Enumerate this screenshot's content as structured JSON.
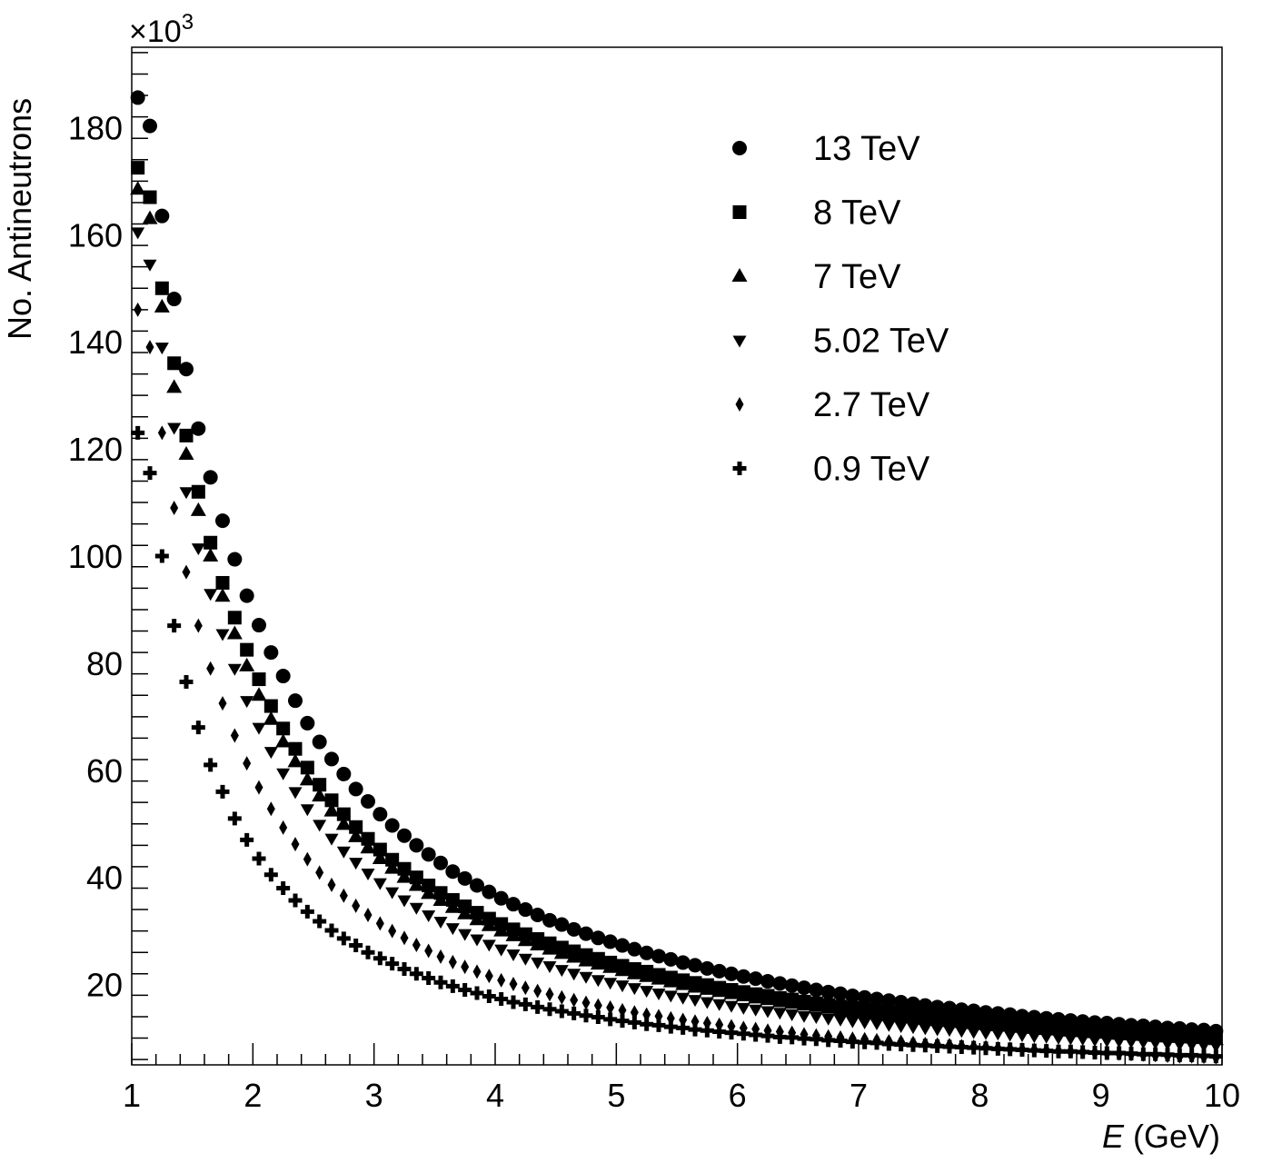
{
  "chart_data": {
    "type": "scatter",
    "title": "",
    "xlabel": "E",
    "xlabel_unit": "(GeV)",
    "ylabel": "No. Antineutrons",
    "y_multiplier": "×10",
    "y_multiplier_exponent": "3",
    "xlim": [
      1,
      10
    ],
    "ylim": [
      5,
      195
    ],
    "x_ticks": [
      1,
      2,
      3,
      4,
      5,
      6,
      7,
      8,
      9,
      10
    ],
    "x_tick_labels": [
      "1",
      "2",
      "3",
      "4",
      "5",
      "6",
      "7",
      "8",
      "9",
      "10"
    ],
    "y_ticks": [
      20,
      40,
      60,
      80,
      100,
      120,
      140,
      160,
      180
    ],
    "y_tick_labels": [
      "20",
      "40",
      "60",
      "80",
      "100",
      "120",
      "140",
      "160",
      "180"
    ],
    "grid": false,
    "legend_position": "top-right",
    "x": [
      1.05,
      1.15,
      1.25,
      1.35,
      1.45,
      1.55,
      1.65,
      1.75,
      1.85,
      1.95,
      2.05,
      2.15,
      2.25,
      2.35,
      2.45,
      2.55,
      2.65,
      2.75,
      2.85,
      2.95,
      3.05,
      3.15,
      3.25,
      3.35,
      3.45,
      3.55,
      3.65,
      3.75,
      3.85,
      3.95,
      4.05,
      4.15,
      4.25,
      4.35,
      4.45,
      4.55,
      4.65,
      4.75,
      4.85,
      4.95,
      5.05,
      5.15,
      5.25,
      5.35,
      5.45,
      5.55,
      5.65,
      5.75,
      5.85,
      5.95,
      6.05,
      6.15,
      6.25,
      6.35,
      6.45,
      6.55,
      6.65,
      6.75,
      6.85,
      6.95,
      7.05,
      7.15,
      7.25,
      7.35,
      7.45,
      7.55,
      7.65,
      7.75,
      7.85,
      7.95,
      8.05,
      8.15,
      8.25,
      8.35,
      8.45,
      8.55,
      8.65,
      8.75,
      8.85,
      8.95,
      9.05,
      9.15,
      9.25,
      9.35,
      9.45,
      9.55,
      9.65,
      9.75,
      9.85,
      9.95
    ],
    "series": [
      {
        "name": "13 TeV",
        "marker": "circle",
        "values": [
          185.6,
          180.3,
          163.5,
          148.0,
          134.9,
          123.8,
          114.7,
          106.6,
          99.4,
          92.6,
          87.1,
          82.0,
          77.6,
          73.0,
          68.8,
          65.3,
          62.1,
          59.3,
          56.5,
          54.2,
          51.8,
          49.7,
          47.8,
          46.0,
          44.3,
          42.7,
          41.1,
          39.8,
          38.5,
          37.3,
          36.1,
          35.0,
          34.0,
          33.0,
          32.0,
          31.2,
          30.3,
          29.5,
          28.7,
          28.0,
          27.3,
          26.6,
          25.9,
          25.3,
          24.7,
          24.1,
          23.6,
          23.0,
          22.5,
          22.0,
          21.5,
          21.1,
          20.6,
          20.2,
          19.8,
          19.4,
          19.0,
          18.6,
          18.3,
          17.9,
          17.6,
          17.3,
          17.0,
          16.7,
          16.4,
          16.1,
          15.8,
          15.6,
          15.3,
          15.1,
          14.8,
          14.6,
          14.4,
          14.1,
          13.9,
          13.7,
          13.5,
          13.3,
          13.1,
          12.9,
          12.8,
          12.6,
          12.4,
          12.3,
          12.1,
          11.9,
          11.8,
          11.6,
          11.5,
          11.3
        ]
      },
      {
        "name": "8 TeV",
        "marker": "square",
        "values": [
          172.5,
          167.0,
          150.0,
          136.0,
          122.5,
          112.0,
          102.5,
          95.0,
          88.5,
          82.5,
          77.0,
          72.0,
          67.8,
          64.0,
          60.5,
          57.3,
          54.4,
          51.8,
          49.4,
          47.2,
          45.2,
          43.3,
          41.6,
          40.0,
          38.5,
          37.1,
          35.8,
          34.6,
          33.4,
          32.3,
          31.3,
          30.3,
          29.4,
          28.5,
          27.7,
          26.9,
          26.2,
          25.5,
          24.8,
          24.1,
          23.5,
          22.9,
          22.4,
          21.8,
          21.3,
          20.8,
          20.3,
          19.9,
          19.4,
          19.0,
          18.6,
          18.2,
          17.9,
          17.5,
          17.2,
          16.8,
          16.5,
          16.2,
          15.9,
          15.6,
          15.4,
          15.1,
          14.8,
          14.6,
          14.4,
          14.1,
          13.9,
          13.7,
          13.5,
          13.3,
          13.1,
          12.9,
          12.7,
          12.5,
          12.3,
          12.2,
          12.0,
          11.8,
          11.7,
          11.5,
          11.4,
          11.2,
          11.1,
          11.0,
          10.8,
          10.7,
          10.6,
          10.4,
          10.3,
          10.2
        ]
      },
      {
        "name": "7 TeV",
        "marker": "triangle-up",
        "values": [
          168.5,
          163.0,
          146.5,
          131.5,
          119.0,
          108.5,
          100.0,
          92.5,
          85.5,
          79.5,
          74.0,
          69.5,
          65.3,
          61.6,
          58.2,
          55.2,
          52.4,
          49.9,
          47.6,
          45.5,
          43.5,
          41.7,
          40.0,
          38.5,
          37.0,
          35.7,
          34.4,
          33.2,
          32.1,
          31.0,
          30.0,
          29.1,
          28.2,
          27.4,
          26.6,
          25.8,
          25.1,
          24.4,
          23.8,
          23.2,
          22.6,
          22.0,
          21.5,
          21.0,
          20.5,
          20.0,
          19.5,
          19.1,
          18.7,
          18.3,
          17.9,
          17.5,
          17.2,
          16.8,
          16.5,
          16.2,
          15.9,
          15.6,
          15.3,
          15.0,
          14.7,
          14.5,
          14.2,
          14.0,
          13.8,
          13.5,
          13.3,
          13.1,
          12.9,
          12.7,
          12.5,
          12.3,
          12.2,
          12.0,
          11.8,
          11.6,
          11.5,
          11.3,
          11.2,
          11.0,
          10.9,
          10.7,
          10.6,
          10.5,
          10.3,
          10.2,
          10.1,
          10.0,
          9.9,
          9.7
        ]
      },
      {
        "name": "5.02 TeV",
        "marker": "triangle-down",
        "values": [
          160.5,
          154.5,
          139.0,
          124.0,
          112.0,
          101.5,
          93.0,
          85.5,
          79.0,
          73.0,
          68.0,
          63.5,
          59.5,
          56.0,
          52.8,
          49.9,
          47.3,
          44.9,
          42.8,
          40.8,
          39.0,
          37.3,
          35.8,
          34.4,
          33.0,
          31.8,
          30.6,
          29.5,
          28.5,
          27.5,
          26.6,
          25.7,
          24.9,
          24.2,
          23.5,
          22.8,
          22.1,
          21.5,
          20.9,
          20.4,
          19.9,
          19.4,
          18.9,
          18.4,
          18.0,
          17.6,
          17.2,
          16.8,
          16.4,
          16.1,
          15.7,
          15.4,
          15.1,
          14.8,
          14.5,
          14.2,
          14.0,
          13.7,
          13.5,
          13.2,
          13.0,
          12.8,
          12.5,
          12.3,
          12.1,
          11.9,
          11.7,
          11.6,
          11.4,
          11.2,
          11.0,
          10.9,
          10.7,
          10.6,
          10.4,
          10.3,
          10.1,
          10.0,
          9.9,
          9.7,
          9.6,
          9.5,
          9.4,
          9.3,
          9.2,
          9.0,
          8.9,
          8.8,
          8.7,
          8.6
        ]
      },
      {
        "name": "2.7 TeV",
        "marker": "diamond",
        "values": [
          146.0,
          139.0,
          123.0,
          109.0,
          97.0,
          87.0,
          79.0,
          72.5,
          66.5,
          61.3,
          56.8,
          52.8,
          49.3,
          46.2,
          43.4,
          40.9,
          38.6,
          36.6,
          34.7,
          33.0,
          31.4,
          30.0,
          28.7,
          27.4,
          26.3,
          25.2,
          24.2,
          23.3,
          22.4,
          21.6,
          20.8,
          20.1,
          19.4,
          18.8,
          18.2,
          17.6,
          17.1,
          16.6,
          16.1,
          15.7,
          15.2,
          14.8,
          14.4,
          14.1,
          13.7,
          13.4,
          13.1,
          12.8,
          12.5,
          12.2,
          11.9,
          11.7,
          11.4,
          11.2,
          11.0,
          10.7,
          10.5,
          10.3,
          10.1,
          9.9,
          9.8,
          9.6,
          9.4,
          9.3,
          9.1,
          8.9,
          8.8,
          8.7,
          8.5,
          8.4,
          8.3,
          8.1,
          8.0,
          7.9,
          7.8,
          7.7,
          7.6,
          7.5,
          7.4,
          7.3,
          7.2,
          7.1,
          7.0,
          6.9,
          6.8,
          6.7,
          6.6,
          6.6,
          6.5,
          6.4
        ]
      },
      {
        "name": "0.9 TeV",
        "marker": "cross",
        "values": [
          123.0,
          115.5,
          100.0,
          87.0,
          76.5,
          68.0,
          61.0,
          56.0,
          51.0,
          47.0,
          43.5,
          40.5,
          38.0,
          35.7,
          33.6,
          31.8,
          30.1,
          28.6,
          27.3,
          26.0,
          24.9,
          23.9,
          22.9,
          22.0,
          21.2,
          20.4,
          19.7,
          19.0,
          18.4,
          17.8,
          17.3,
          16.7,
          16.3,
          15.8,
          15.4,
          15.0,
          14.6,
          14.2,
          13.9,
          13.5,
          13.2,
          12.9,
          12.6,
          12.4,
          12.1,
          11.9,
          11.6,
          11.4,
          11.2,
          11.0,
          10.8,
          10.6,
          10.4,
          10.2,
          10.1,
          9.9,
          9.8,
          9.6,
          9.5,
          9.3,
          9.2,
          9.1,
          8.9,
          8.8,
          8.7,
          8.6,
          8.5,
          8.4,
          8.3,
          8.2,
          8.1,
          8.0,
          7.9,
          7.8,
          7.7,
          7.6,
          7.5,
          7.5,
          7.4,
          7.3,
          7.2,
          7.2,
          7.1,
          7.0,
          7.0,
          6.9,
          6.8,
          6.8,
          6.7,
          6.6
        ]
      }
    ]
  }
}
